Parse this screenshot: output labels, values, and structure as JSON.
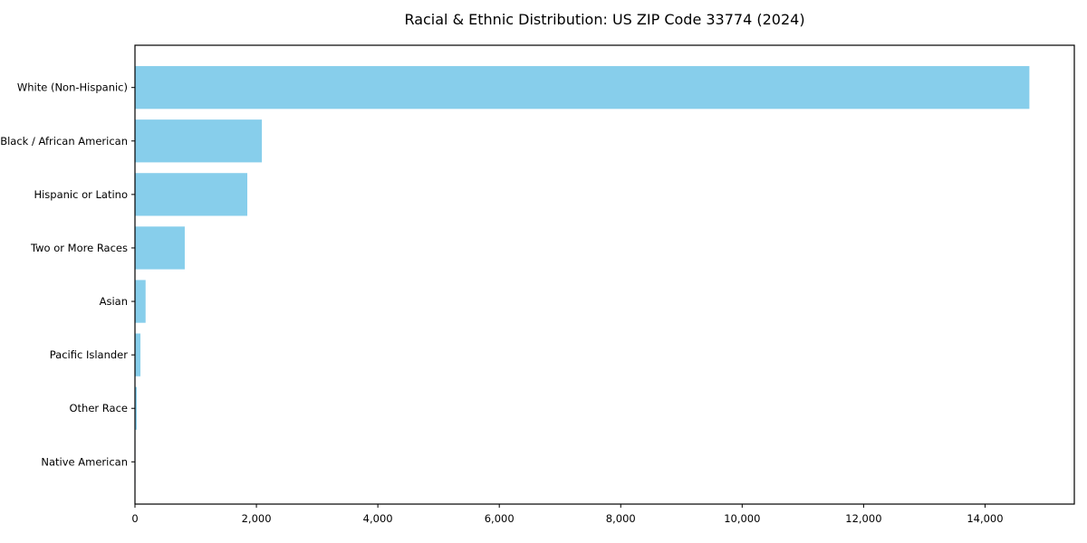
{
  "chart_data": {
    "type": "bar",
    "orientation": "horizontal",
    "title": "Racial & Ethnic Distribution: US ZIP Code 33774 (2024)",
    "categories": [
      "White (Non-Hispanic)",
      "Black / African American",
      "Hispanic or Latino",
      "Two or More Races",
      "Asian",
      "Pacific Islander",
      "Other Race",
      "Native American"
    ],
    "values": [
      14730,
      2090,
      1850,
      820,
      175,
      90,
      30,
      8
    ],
    "xlabel": "",
    "ylabel": "",
    "xlim": [
      0,
      15470
    ],
    "x_ticks": [
      0,
      2000,
      4000,
      6000,
      8000,
      10000,
      12000,
      14000
    ],
    "x_tick_labels": [
      "0",
      "2,000",
      "4,000",
      "6,000",
      "8,000",
      "10,000",
      "12,000",
      "14,000"
    ],
    "bar_color": "#87CEEB",
    "spine_color": "#000000",
    "background_color": "#ffffff",
    "grid": false,
    "legend": null
  }
}
